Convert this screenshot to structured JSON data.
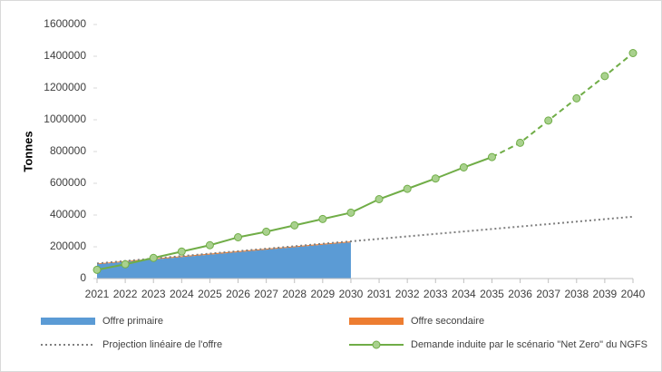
{
  "chart_data": {
    "type": "line",
    "y_label": "Tonnes",
    "categories": [
      "2021",
      "2022",
      "2023",
      "2024",
      "2025",
      "2026",
      "2027",
      "2028",
      "2029",
      "2030",
      "2031",
      "2032",
      "2033",
      "2034",
      "2035",
      "2036",
      "2037",
      "2038",
      "2039",
      "2040"
    ],
    "ylim": [
      0,
      1600000
    ],
    "yticks": [
      0,
      200000,
      400000,
      600000,
      800000,
      1000000,
      1200000,
      1400000,
      1600000
    ],
    "grid": false,
    "legend": "bottom",
    "series": [
      {
        "name": "Offre primaire",
        "type": "area",
        "stacked": true,
        "color": "#5b9bd5",
        "values": [
          90000,
          105000,
          120000,
          135000,
          151000,
          166000,
          182000,
          197000,
          213000,
          228000,
          null,
          null,
          null,
          null,
          null,
          null,
          null,
          null,
          null,
          null
        ]
      },
      {
        "name": "Offre secondaire",
        "type": "area",
        "stacked": true,
        "color": "#ed7d31",
        "values": [
          5000,
          5000,
          6000,
          6000,
          6000,
          6000,
          6000,
          6000,
          6000,
          6000,
          null,
          null,
          null,
          null,
          null,
          null,
          null,
          null,
          null,
          null
        ]
      },
      {
        "name": "Projection linéaire de l'offre",
        "type": "line",
        "style": "dotted",
        "color": "#7f7f7f",
        "values": [
          95000,
          110500,
          126000,
          141500,
          157000,
          172500,
          188000,
          203500,
          219000,
          234500,
          250000,
          265500,
          281000,
          296500,
          312000,
          327500,
          343000,
          358500,
          374000,
          389500
        ]
      },
      {
        "name": "Demande induite par le scénario \"Net Zero\" du NGFS",
        "type": "line",
        "style": "solid",
        "dashed_from": "2035",
        "markers": true,
        "color": "#70ad47",
        "marker_fill": "#a9d18e",
        "values": [
          55000,
          90000,
          130000,
          170000,
          210000,
          260000,
          295000,
          335000,
          375000,
          415000,
          500000,
          565000,
          630000,
          700000,
          765000,
          855000,
          995000,
          1135000,
          1275000,
          1420000
        ]
      }
    ]
  }
}
